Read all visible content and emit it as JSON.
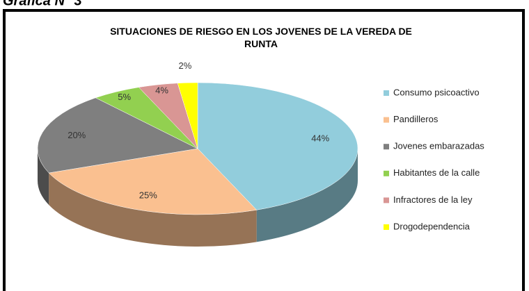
{
  "heading": "Gráfica N° 3",
  "chart_data": {
    "type": "pie3d",
    "title": "SITUACIONES DE RIESGO EN LOS JOVENES DE LA VEREDA DE RUNTA",
    "categories": [
      "Consumo psicoactivo",
      "Pandilleros",
      "Jovenes embarazadas",
      "Habitantes de la calle",
      "Infractores de la ley",
      "Drogodependencia"
    ],
    "values": [
      44,
      25,
      20,
      5,
      4,
      2
    ],
    "value_labels": [
      "44%",
      "25%",
      "20%",
      "5%",
      "4%",
      "2%"
    ],
    "colors": [
      "#92cddc",
      "#fac090",
      "#7f7f7f",
      "#92d050",
      "#d99694",
      "#ffff00"
    ],
    "legend": "right"
  }
}
